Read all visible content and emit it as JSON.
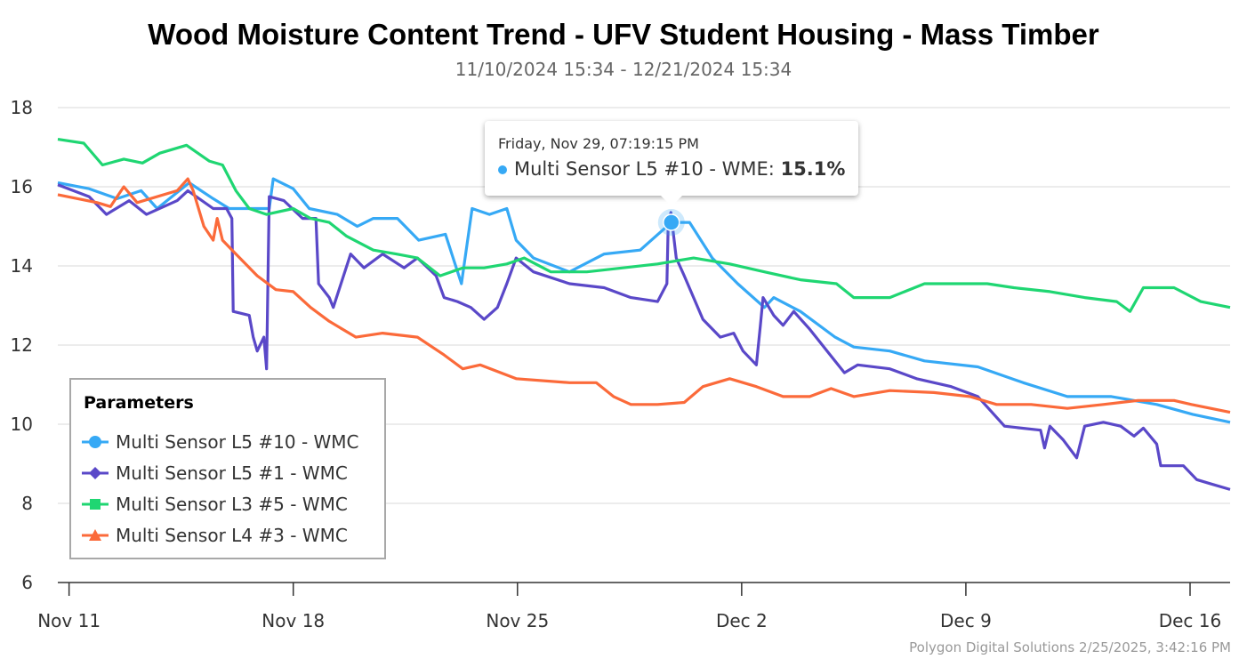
{
  "chart_data": {
    "type": "line",
    "title": "Wood Moisture Content Trend - UFV Student Housing - Mass Timber",
    "subtitle": "11/10/2024 15:34 - 12/21/2024 15:34",
    "xlabel": "",
    "ylabel": "",
    "ylim": [
      6,
      18
    ],
    "yticks": [
      "18",
      "16",
      "14",
      "12",
      "10",
      "8",
      "6"
    ],
    "xlim": [
      "2024-11-10T15:34",
      "2024-12-17T06:00"
    ],
    "xticks": [
      {
        "date": "2024-11-11T00:00",
        "label": "Nov 11"
      },
      {
        "date": "2024-11-18T00:00",
        "label": "Nov 18"
      },
      {
        "date": "2024-11-25T00:00",
        "label": "Nov 25"
      },
      {
        "date": "2024-12-02T00:00",
        "label": "Dec 2"
      },
      {
        "date": "2024-12-09T00:00",
        "label": "Dec 9"
      },
      {
        "date": "2024-12-16T00:00",
        "label": "Dec 16"
      }
    ],
    "grid": true,
    "legend": {
      "title": "Parameters",
      "placement": "bottom-left"
    },
    "series": [
      {
        "name": "Multi Sensor L5 #10 - WMC",
        "color": "#36a9f5",
        "marker": "circle",
        "points": [
          [
            "2024-11-10T15:34",
            16.1
          ],
          [
            "2024-11-11T15:00",
            15.95
          ],
          [
            "2024-11-12T12:00",
            15.7
          ],
          [
            "2024-11-13T06:00",
            15.9
          ],
          [
            "2024-11-13T18:00",
            15.45
          ],
          [
            "2024-11-14T18:00",
            16.1
          ],
          [
            "2024-11-15T12:00",
            15.7
          ],
          [
            "2024-11-16T00:00",
            15.45
          ],
          [
            "2024-11-17T06:00",
            15.45
          ],
          [
            "2024-11-17T09:00",
            16.2
          ],
          [
            "2024-11-18T00:00",
            15.95
          ],
          [
            "2024-11-18T12:00",
            15.45
          ],
          [
            "2024-11-19T09:00",
            15.3
          ],
          [
            "2024-11-20T00:00",
            15.0
          ],
          [
            "2024-11-20T12:00",
            15.2
          ],
          [
            "2024-11-21T06:00",
            15.2
          ],
          [
            "2024-11-21T22:00",
            14.65
          ],
          [
            "2024-11-22T18:00",
            14.8
          ],
          [
            "2024-11-23T06:00",
            13.55
          ],
          [
            "2024-11-23T14:00",
            15.45
          ],
          [
            "2024-11-24T03:00",
            15.3
          ],
          [
            "2024-11-24T16:00",
            15.45
          ],
          [
            "2024-11-24T23:00",
            14.65
          ],
          [
            "2024-11-25T12:00",
            14.2
          ],
          [
            "2024-11-26T15:00",
            13.85
          ],
          [
            "2024-11-27T17:00",
            14.3
          ],
          [
            "2024-11-28T20:00",
            14.4
          ],
          [
            "2024-11-29T19:19",
            15.1
          ],
          [
            "2024-11-30T09:00",
            15.1
          ],
          [
            "2024-12-01T02:00",
            14.2
          ],
          [
            "2024-12-01T21:00",
            13.55
          ],
          [
            "2024-12-02T17:00",
            12.95
          ],
          [
            "2024-12-03T00:00",
            13.2
          ],
          [
            "2024-12-03T20:00",
            12.85
          ],
          [
            "2024-12-04T22:00",
            12.2
          ],
          [
            "2024-12-05T12:00",
            11.95
          ],
          [
            "2024-12-06T15:00",
            11.85
          ],
          [
            "2024-12-07T17:00",
            11.6
          ],
          [
            "2024-12-09T09:00",
            11.45
          ],
          [
            "2024-12-10T19:00",
            11.05
          ],
          [
            "2024-12-12T04:00",
            10.7
          ],
          [
            "2024-12-13T13:00",
            10.7
          ],
          [
            "2024-12-14T23:00",
            10.5
          ],
          [
            "2024-12-16T02:00",
            10.25
          ],
          [
            "2024-12-17T06:00",
            10.05
          ]
        ]
      },
      {
        "name": "Multi Sensor L5 #1 - WMC",
        "color": "#5a48c8",
        "marker": "diamond",
        "points": [
          [
            "2024-11-10T15:34",
            16.05
          ],
          [
            "2024-11-11T15:00",
            15.75
          ],
          [
            "2024-11-12T04:00",
            15.3
          ],
          [
            "2024-11-12T21:00",
            15.65
          ],
          [
            "2024-11-13T10:00",
            15.3
          ],
          [
            "2024-11-14T09:00",
            15.65
          ],
          [
            "2024-11-14T17:00",
            15.9
          ],
          [
            "2024-11-15T12:00",
            15.45
          ],
          [
            "2024-11-15T22:00",
            15.45
          ],
          [
            "2024-11-16T02:00",
            15.2
          ],
          [
            "2024-11-16T03:00",
            12.85
          ],
          [
            "2024-11-16T15:00",
            12.75
          ],
          [
            "2024-11-16T18:00",
            12.2
          ],
          [
            "2024-11-16T21:00",
            11.85
          ],
          [
            "2024-11-17T02:00",
            12.2
          ],
          [
            "2024-11-17T04:00",
            11.4
          ],
          [
            "2024-11-17T06:00",
            15.75
          ],
          [
            "2024-11-17T17:00",
            15.65
          ],
          [
            "2024-11-18T07:00",
            15.2
          ],
          [
            "2024-11-18T17:00",
            15.2
          ],
          [
            "2024-11-18T19:00",
            13.55
          ],
          [
            "2024-11-19T03:00",
            13.2
          ],
          [
            "2024-11-19T06:00",
            12.95
          ],
          [
            "2024-11-19T19:00",
            14.3
          ],
          [
            "2024-11-20T05:00",
            13.95
          ],
          [
            "2024-11-20T19:00",
            14.3
          ],
          [
            "2024-11-21T11:00",
            13.95
          ],
          [
            "2024-11-21T21:00",
            14.2
          ],
          [
            "2024-11-22T11:00",
            13.75
          ],
          [
            "2024-11-22T17:00",
            13.2
          ],
          [
            "2024-11-23T03:00",
            13.1
          ],
          [
            "2024-11-23T13:00",
            12.95
          ],
          [
            "2024-11-23T23:00",
            12.65
          ],
          [
            "2024-11-24T09:00",
            12.95
          ],
          [
            "2024-11-24T16:00",
            13.55
          ],
          [
            "2024-11-24T23:00",
            14.2
          ],
          [
            "2024-11-25T12:00",
            13.85
          ],
          [
            "2024-11-26T15:00",
            13.55
          ],
          [
            "2024-11-27T17:00",
            13.45
          ],
          [
            "2024-11-28T13:00",
            13.2
          ],
          [
            "2024-11-29T09:00",
            13.1
          ],
          [
            "2024-11-29T16:00",
            13.55
          ],
          [
            "2024-11-29T17:00",
            15.1
          ],
          [
            "2024-11-29T19:00",
            15.35
          ],
          [
            "2024-11-29T23:00",
            14.2
          ],
          [
            "2024-11-30T05:00",
            13.75
          ],
          [
            "2024-11-30T19:00",
            12.65
          ],
          [
            "2024-12-01T08:00",
            12.2
          ],
          [
            "2024-12-01T18:00",
            12.3
          ],
          [
            "2024-12-02T01:00",
            11.85
          ],
          [
            "2024-12-02T11:00",
            11.5
          ],
          [
            "2024-12-02T14:00",
            12.5
          ],
          [
            "2024-12-02T16:00",
            13.2
          ],
          [
            "2024-12-03T00:00",
            12.75
          ],
          [
            "2024-12-03T07:00",
            12.5
          ],
          [
            "2024-12-03T15:00",
            12.85
          ],
          [
            "2024-12-04T03:00",
            12.4
          ],
          [
            "2024-12-04T16:00",
            11.85
          ],
          [
            "2024-12-05T05:00",
            11.3
          ],
          [
            "2024-12-05T15:00",
            11.5
          ],
          [
            "2024-12-06T15:00",
            11.4
          ],
          [
            "2024-12-07T11:00",
            11.15
          ],
          [
            "2024-12-08T13:00",
            10.95
          ],
          [
            "2024-12-09T09:00",
            10.7
          ],
          [
            "2024-12-10T05:00",
            9.95
          ],
          [
            "2024-12-11T08:00",
            9.85
          ],
          [
            "2024-12-11T11:00",
            9.4
          ],
          [
            "2024-12-11T15:00",
            9.95
          ],
          [
            "2024-12-12T01:00",
            9.6
          ],
          [
            "2024-12-12T11:00",
            9.15
          ],
          [
            "2024-12-12T17:00",
            9.95
          ],
          [
            "2024-12-13T07:00",
            10.05
          ],
          [
            "2024-12-13T20:00",
            9.95
          ],
          [
            "2024-12-14T06:00",
            9.7
          ],
          [
            "2024-12-14T13:00",
            9.9
          ],
          [
            "2024-12-14T23:00",
            9.5
          ],
          [
            "2024-12-15T02:00",
            8.95
          ],
          [
            "2024-12-15T19:00",
            8.95
          ],
          [
            "2024-12-16T05:00",
            8.6
          ],
          [
            "2024-12-16T15:00",
            8.5
          ],
          [
            "2024-12-17T06:00",
            8.35
          ]
        ]
      },
      {
        "name": "Multi Sensor L3 #5 - WMC",
        "color": "#1fd672",
        "marker": "square",
        "points": [
          [
            "2024-11-10T15:34",
            17.2
          ],
          [
            "2024-11-11T11:00",
            17.1
          ],
          [
            "2024-11-12T01:00",
            16.55
          ],
          [
            "2024-11-12T17:00",
            16.7
          ],
          [
            "2024-11-13T07:00",
            16.6
          ],
          [
            "2024-11-13T20:00",
            16.85
          ],
          [
            "2024-11-14T16:00",
            17.05
          ],
          [
            "2024-11-15T09:00",
            16.65
          ],
          [
            "2024-11-15T19:00",
            16.55
          ],
          [
            "2024-11-16T05:00",
            15.9
          ],
          [
            "2024-11-16T15:00",
            15.45
          ],
          [
            "2024-11-17T04:00",
            15.3
          ],
          [
            "2024-11-18T00:00",
            15.45
          ],
          [
            "2024-11-18T13:00",
            15.2
          ],
          [
            "2024-11-19T03:00",
            15.1
          ],
          [
            "2024-11-19T16:00",
            14.75
          ],
          [
            "2024-11-20T12:00",
            14.4
          ],
          [
            "2024-11-21T05:00",
            14.3
          ],
          [
            "2024-11-21T21:00",
            14.2
          ],
          [
            "2024-11-22T14:00",
            13.75
          ],
          [
            "2024-11-23T07:00",
            13.95
          ],
          [
            "2024-11-23T23:00",
            13.95
          ],
          [
            "2024-11-24T16:00",
            14.05
          ],
          [
            "2024-11-25T05:00",
            14.2
          ],
          [
            "2024-11-26T01:00",
            13.85
          ],
          [
            "2024-11-27T04:00",
            13.85
          ],
          [
            "2024-11-28T07:00",
            13.95
          ],
          [
            "2024-11-29T09:00",
            14.05
          ],
          [
            "2024-11-30T12:00",
            14.2
          ],
          [
            "2024-12-01T15:00",
            14.05
          ],
          [
            "2024-12-02T17:00",
            13.85
          ],
          [
            "2024-12-03T20:00",
            13.65
          ],
          [
            "2024-12-04T23:00",
            13.55
          ],
          [
            "2024-12-05T12:00",
            13.2
          ],
          [
            "2024-12-06T15:00",
            13.2
          ],
          [
            "2024-12-07T17:00",
            13.55
          ],
          [
            "2024-12-08T20:00",
            13.55
          ],
          [
            "2024-12-09T16:00",
            13.55
          ],
          [
            "2024-12-10T12:00",
            13.45
          ],
          [
            "2024-12-11T15:00",
            13.35
          ],
          [
            "2024-12-12T17:00",
            13.2
          ],
          [
            "2024-12-13T17:00",
            13.1
          ],
          [
            "2024-12-14T03:00",
            12.85
          ],
          [
            "2024-12-14T13:00",
            13.45
          ],
          [
            "2024-12-15T12:00",
            13.45
          ],
          [
            "2024-12-16T08:00",
            13.1
          ],
          [
            "2024-12-17T06:00",
            12.95
          ]
        ]
      },
      {
        "name": "Multi Sensor L4 #3 - WMC",
        "color": "#fb6a3a",
        "marker": "triangle",
        "points": [
          [
            "2024-11-10T15:34",
            15.8
          ],
          [
            "2024-11-11T21:00",
            15.6
          ],
          [
            "2024-11-12T07:00",
            15.5
          ],
          [
            "2024-11-12T17:00",
            16.0
          ],
          [
            "2024-11-13T03:00",
            15.6
          ],
          [
            "2024-11-14T09:00",
            15.9
          ],
          [
            "2024-11-14T17:00",
            16.2
          ],
          [
            "2024-11-14T21:00",
            15.9
          ],
          [
            "2024-11-15T05:00",
            15.0
          ],
          [
            "2024-11-15T12:00",
            14.65
          ],
          [
            "2024-11-15T15:00",
            15.2
          ],
          [
            "2024-11-15T19:00",
            14.65
          ],
          [
            "2024-11-16T05:00",
            14.3
          ],
          [
            "2024-11-16T21:00",
            13.75
          ],
          [
            "2024-11-17T11:00",
            13.4
          ],
          [
            "2024-11-18T00:00",
            13.35
          ],
          [
            "2024-11-18T13:00",
            12.95
          ],
          [
            "2024-11-19T03:00",
            12.6
          ],
          [
            "2024-11-19T23:00",
            12.2
          ],
          [
            "2024-11-20T19:00",
            12.3
          ],
          [
            "2024-11-21T21:00",
            12.2
          ],
          [
            "2024-11-22T17:00",
            11.75
          ],
          [
            "2024-11-23T07:00",
            11.4
          ],
          [
            "2024-11-23T20:00",
            11.5
          ],
          [
            "2024-11-24T23:00",
            11.15
          ],
          [
            "2024-11-26T15:00",
            11.05
          ],
          [
            "2024-11-27T11:00",
            11.05
          ],
          [
            "2024-11-28T00:00",
            10.7
          ],
          [
            "2024-11-28T13:00",
            10.5
          ],
          [
            "2024-11-29T09:00",
            10.5
          ],
          [
            "2024-11-30T05:00",
            10.55
          ],
          [
            "2024-11-30T19:00",
            10.95
          ],
          [
            "2024-12-01T15:00",
            11.15
          ],
          [
            "2024-12-02T11:00",
            10.95
          ],
          [
            "2024-12-03T07:00",
            10.7
          ],
          [
            "2024-12-04T03:00",
            10.7
          ],
          [
            "2024-12-04T19:00",
            10.9
          ],
          [
            "2024-12-05T12:00",
            10.7
          ],
          [
            "2024-12-06T15:00",
            10.85
          ],
          [
            "2024-12-08T00:00",
            10.8
          ],
          [
            "2024-12-09T03:00",
            10.7
          ],
          [
            "2024-12-09T23:00",
            10.5
          ],
          [
            "2024-12-11T01:00",
            10.5
          ],
          [
            "2024-12-12T04:00",
            10.4
          ],
          [
            "2024-12-13T07:00",
            10.5
          ],
          [
            "2024-12-14T09:00",
            10.6
          ],
          [
            "2024-12-15T12:00",
            10.6
          ],
          [
            "2024-12-16T01:00",
            10.5
          ],
          [
            "2024-12-17T06:00",
            10.3
          ]
        ]
      }
    ],
    "tooltip": {
      "date": "Friday, Nov 29, 07:19:15 PM",
      "series": "Multi Sensor L5 #10 - WME: ",
      "value": "15.1%",
      "point": [
        "2024-11-29T19:19",
        15.1
      ],
      "color": "#36a9f5"
    },
    "footer": "Polygon Digital Solutions 2/25/2025, 3:42:16 PM"
  }
}
